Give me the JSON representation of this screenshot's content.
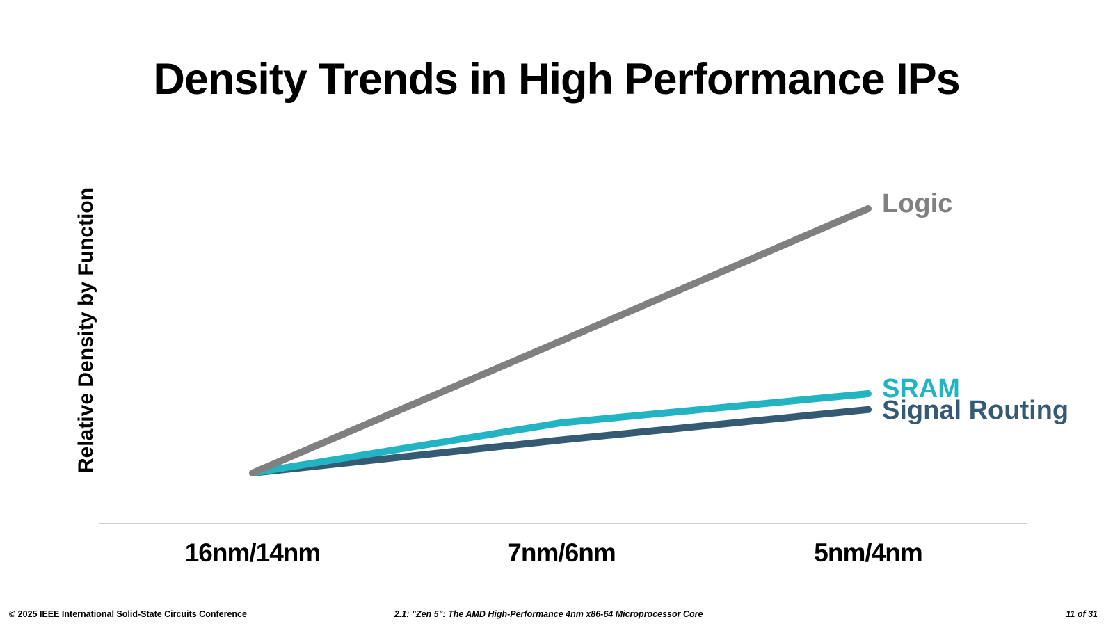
{
  "slide": {
    "title": "Density Trends in High Performance IPs"
  },
  "colors": {
    "logic": "#808080",
    "sram": "#22b4c2",
    "signal_routing": "#355b74",
    "axis": "#bfbfbf"
  },
  "chart_data": {
    "type": "line",
    "title": "Density Trends in High Performance IPs",
    "xlabel": "",
    "ylabel": "Relative Density by Function",
    "categories": [
      "16nm/14nm",
      "7nm/6nm",
      "5nm/4nm"
    ],
    "ylim": [
      0,
      3.8
    ],
    "grid": false,
    "legend": "inline labels at line ends",
    "series": [
      {
        "name": "Logic",
        "values": [
          1.0,
          2.0,
          3.0
        ],
        "color": "#808080"
      },
      {
        "name": "SRAM",
        "values": [
          1.0,
          1.38,
          1.6
        ],
        "color": "#22b4c2"
      },
      {
        "name": "Signal Routing",
        "values": [
          1.0,
          1.25,
          1.48
        ],
        "color": "#355b74"
      }
    ]
  },
  "footer": {
    "copyright": "© 2025 IEEE International Solid-State Circuits Conference",
    "session": "2.1: \"Zen 5\": The AMD High-Performance 4nm x86-64 Microprocessor Core",
    "page": "11 of 31"
  }
}
